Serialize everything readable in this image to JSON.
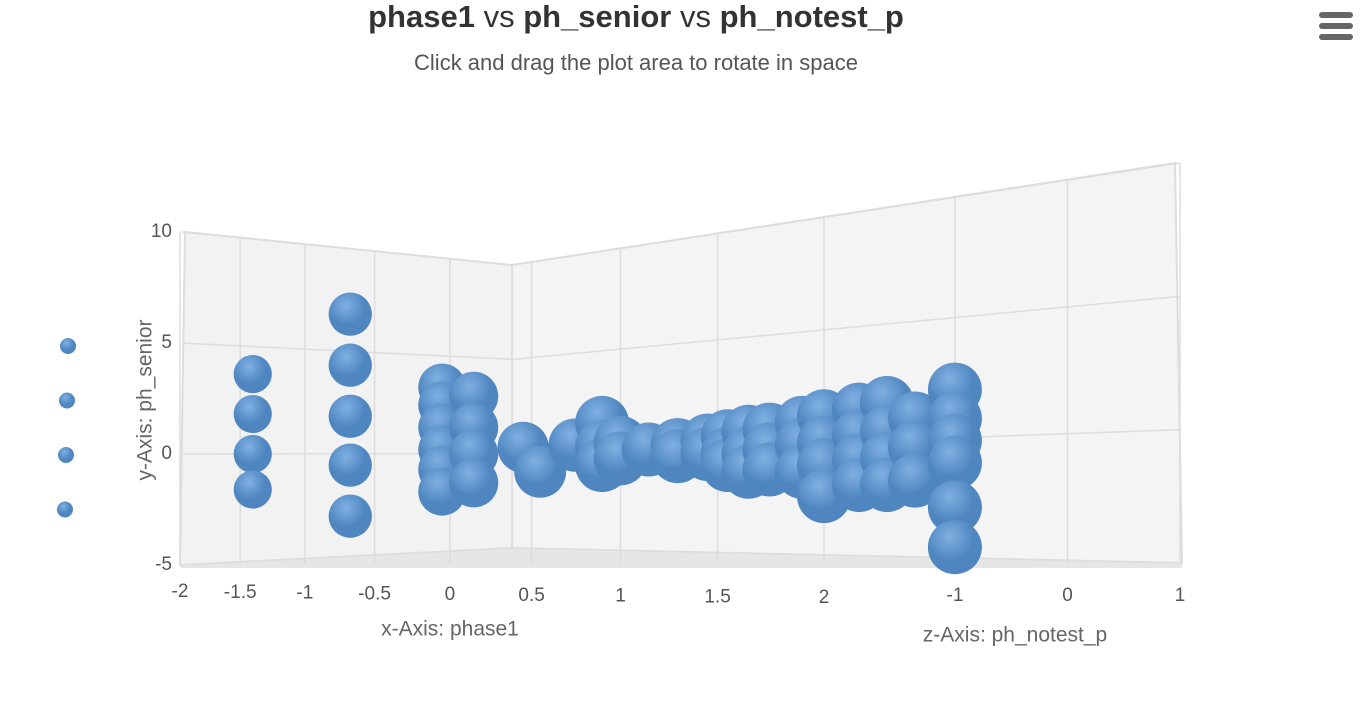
{
  "chart_data": {
    "type": "scatter3d",
    "title": [
      {
        "text": "phase1",
        "bold": true
      },
      {
        "text": " vs ",
        "bold": false
      },
      {
        "text": "ph_senior",
        "bold": true
      },
      {
        "text": " vs ",
        "bold": false
      },
      {
        "text": "ph_notest_p",
        "bold": true
      }
    ],
    "subtitle": "Click and drag the plot area to rotate in space",
    "x_label": "x-Axis: phase1",
    "y_label": "y-Axis: ph_senior",
    "z_label": "z-Axis: ph_notest_p",
    "xlim": [
      -2,
      2
    ],
    "xticks": [
      -2,
      -1.5,
      -1,
      -0.5,
      0,
      0.5,
      1,
      1.5,
      2
    ],
    "ylim": [
      -5,
      10
    ],
    "yticks": [
      -5,
      0,
      5,
      10
    ],
    "zlim": [
      -1,
      1
    ],
    "zticks": [
      -1,
      0,
      1
    ],
    "grid": true,
    "series": [
      {
        "color": "#4f86c0",
        "x": [
          -1.4,
          -1.4,
          -1.4,
          -1.4,
          -0.67,
          -0.67,
          -0.67,
          -0.67,
          -0.67
        ],
        "y": [
          3.6,
          1.8,
          0,
          -1.6,
          6.3,
          4.0,
          1.7,
          -0.5,
          -2.8
        ],
        "z": [
          -1,
          -1,
          -1,
          -1,
          -1,
          -1,
          -1,
          -1,
          -1
        ]
      },
      {
        "color": "#4f86c0",
        "x": [
          -0.05,
          -0.05,
          -0.05,
          -0.05,
          -0.05,
          -0.05,
          0.15,
          0.15,
          0.15,
          0.15
        ],
        "y": [
          3.0,
          2.2,
          1.2,
          0.2,
          -0.7,
          -1.7,
          2.6,
          1.2,
          0,
          -1.3
        ],
        "z": [
          -1,
          -1,
          -1,
          -1,
          -1,
          -1,
          -1,
          -1,
          -1,
          -1
        ]
      },
      {
        "color": "#4f86c0",
        "x": [
          0.45,
          0.55,
          0.75,
          0.9,
          0.9,
          0.9,
          1.0,
          1.0,
          1.15,
          1.3,
          1.3,
          1.45,
          1.45,
          1.55,
          1.55,
          1.55,
          1.65,
          1.65,
          1.65,
          1.75,
          1.75,
          1.75,
          1.9,
          1.9,
          1.9,
          2,
          2,
          2,
          2
        ],
        "y": [
          0.3,
          -0.8,
          0.4,
          1.4,
          0.3,
          -0.5,
          0.5,
          -0.2,
          0.2,
          0.4,
          -0.1,
          0.6,
          0,
          0.8,
          0,
          -0.5,
          1.0,
          0,
          -0.8,
          1.1,
          0.2,
          -0.7,
          1.4,
          0.4,
          -0.8,
          1.7,
          0.5,
          -0.5,
          -1.9
        ],
        "z": [
          -1,
          -1,
          -1,
          -1,
          -1,
          -1,
          -1,
          -1,
          -1,
          -1,
          -1,
          -1,
          -1,
          -1,
          -1,
          -1,
          -1,
          -1,
          -1,
          -1,
          -1,
          -1,
          -1,
          -1,
          -1,
          -1,
          -1,
          -1,
          -1
        ]
      },
      {
        "color": "#4f86c0",
        "x": [
          2,
          2,
          2,
          2,
          2,
          2,
          2,
          2,
          2,
          2,
          2,
          2,
          2,
          2,
          2,
          2,
          2
        ],
        "y": [
          2.0,
          0.8,
          -0.3,
          -1.4,
          2.3,
          1.0,
          -0.2,
          -1.4,
          1.6,
          0.3,
          -1.2,
          2.9,
          1.6,
          0.6,
          -0.4,
          -2.4,
          -4.2
        ],
        "z": [
          -0.5,
          -0.5,
          -0.5,
          -0.5,
          -0.1,
          -0.1,
          -0.1,
          -0.1,
          0.3,
          0.3,
          0.3,
          0.87,
          0.87,
          0.87,
          0.87,
          0.87,
          0.87
        ]
      }
    ]
  }
}
